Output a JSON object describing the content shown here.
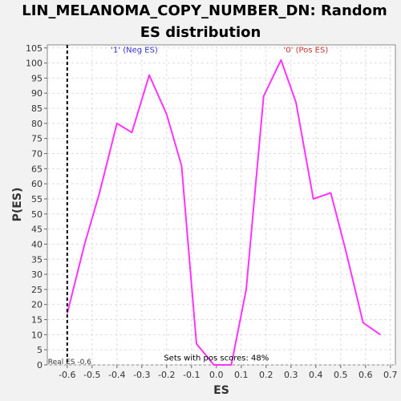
{
  "chart_data": {
    "type": "line",
    "title": "LIN_MELANOMA_COPY_NUMBER_DN: Random ES distribution",
    "title_lines": [
      "LIN_MELANOMA_COPY_NUMBER_DN: Random",
      "ES distribution"
    ],
    "xlabel": "ES",
    "ylabel": "P(ES)",
    "xlim": [
      -0.68,
      0.72
    ],
    "ylim": [
      0,
      106
    ],
    "x_ticks": [
      -0.6,
      -0.5,
      -0.4,
      -0.3,
      -0.2,
      -0.1,
      0.0,
      0.1,
      0.2,
      0.3,
      0.4,
      0.5,
      0.6,
      0.7
    ],
    "y_ticks": [
      0,
      5,
      10,
      15,
      20,
      25,
      30,
      35,
      40,
      45,
      50,
      55,
      60,
      65,
      70,
      75,
      80,
      85,
      90,
      95,
      100,
      105
    ],
    "grid": true,
    "series": [
      {
        "color": "#ff33ff",
        "x": [
          -0.6,
          -0.53,
          -0.47,
          -0.4,
          -0.34,
          -0.27,
          -0.2,
          -0.14,
          -0.08,
          -0.01,
          0.06,
          0.12,
          0.19,
          0.26,
          0.32,
          0.39,
          0.46,
          0.52,
          0.59,
          0.66
        ],
        "y": [
          17,
          40,
          57,
          80,
          77,
          96,
          83,
          66,
          7,
          0,
          0,
          25,
          89,
          101,
          87,
          55,
          57,
          38,
          14,
          10
        ]
      }
    ],
    "real_es": {
      "x": -0.6,
      "label": "Real ES -0.6",
      "color": "#000000"
    },
    "annotations": [
      {
        "text": "'1' (Neg ES)",
        "x": -0.33,
        "y": 103.5,
        "color": "#3333cc"
      },
      {
        "text": "'0' (Pos ES)",
        "x": 0.36,
        "y": 103.5,
        "color": "#cc3333"
      },
      {
        "text": "Sets with pos scores: 48%",
        "x": 0.0,
        "y": 1.5,
        "color": "#000000"
      }
    ]
  }
}
